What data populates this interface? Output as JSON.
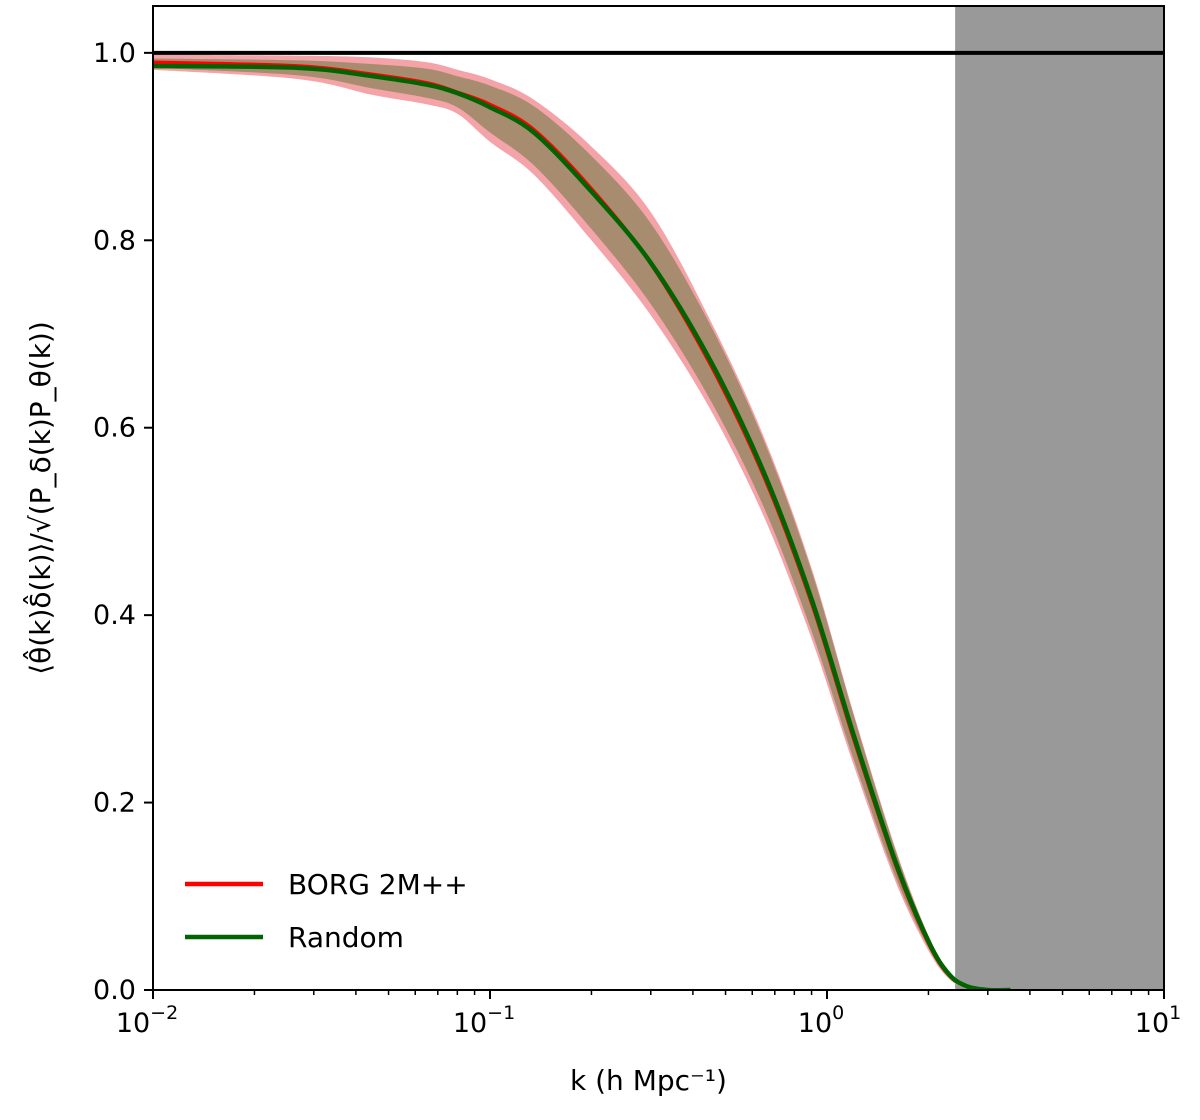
{
  "chart_data": {
    "type": "line",
    "xscale": "log",
    "xlim": [
      0.01,
      10
    ],
    "ylim": [
      0.0,
      1.05
    ],
    "xlabel": "k (h Mpc⁻¹)",
    "ylabel": "⟨θ̂(k)δ̂(k)⟩/√(P_δ(k)P_θ(k))",
    "x_ticks": [
      {
        "value": 0.01,
        "base": "10",
        "exp": "−2"
      },
      {
        "value": 0.1,
        "base": "10",
        "exp": "−1"
      },
      {
        "value": 1,
        "base": "10",
        "exp": "0"
      },
      {
        "value": 10,
        "base": "10",
        "exp": "1"
      }
    ],
    "y_ticks": [
      {
        "value": 0.0,
        "label": "0.0"
      },
      {
        "value": 0.2,
        "label": "0.2"
      },
      {
        "value": 0.4,
        "label": "0.4"
      },
      {
        "value": 0.6,
        "label": "0.6"
      },
      {
        "value": 0.8,
        "label": "0.8"
      },
      {
        "value": 1.0,
        "label": "1.0"
      }
    ],
    "reference_line": {
      "y": 1.0,
      "color": "#000000"
    },
    "shaded_region": {
      "x_min": 2.4,
      "x_max": 10,
      "color": "#999999"
    },
    "legend_position": "lower-left",
    "grid": false,
    "series": [
      {
        "name": "BORG 2M++",
        "color": "#ff0000",
        "band_color": "#f4a3a8",
        "x": [
          0.01,
          0.027,
          0.045,
          0.065,
          0.08,
          0.1,
          0.135,
          0.2,
          0.3,
          0.45,
          0.65,
          0.9,
          1.2,
          1.6,
          2.0,
          2.3,
          2.6,
          3.0,
          3.5
        ],
        "y": [
          0.99,
          0.986,
          0.977,
          0.968,
          0.958,
          0.945,
          0.918,
          0.855,
          0.775,
          0.668,
          0.548,
          0.413,
          0.268,
          0.133,
          0.05,
          0.016,
          0.004,
          0.0,
          0.0
        ],
        "y_low": [
          0.982,
          0.972,
          0.955,
          0.945,
          0.935,
          0.905,
          0.87,
          0.8,
          0.72,
          0.62,
          0.505,
          0.375,
          0.24,
          0.115,
          0.042,
          0.012,
          0.002,
          0.0,
          0.0
        ],
        "y_high": [
          0.998,
          0.997,
          0.995,
          0.99,
          0.982,
          0.972,
          0.95,
          0.9,
          0.83,
          0.715,
          0.59,
          0.45,
          0.295,
          0.15,
          0.058,
          0.02,
          0.006,
          0.0,
          0.0
        ]
      },
      {
        "name": "Random",
        "color": "#006400",
        "band_color": "#a08a6a",
        "x": [
          0.01,
          0.027,
          0.045,
          0.065,
          0.08,
          0.1,
          0.135,
          0.2,
          0.3,
          0.45,
          0.65,
          0.9,
          1.2,
          1.6,
          2.0,
          2.3,
          2.6,
          3.0,
          3.5
        ],
        "y": [
          0.986,
          0.984,
          0.975,
          0.966,
          0.957,
          0.942,
          0.915,
          0.852,
          0.776,
          0.672,
          0.552,
          0.417,
          0.272,
          0.136,
          0.052,
          0.017,
          0.004,
          0.0,
          0.0
        ],
        "y_low": [
          0.984,
          0.976,
          0.962,
          0.952,
          0.942,
          0.915,
          0.88,
          0.812,
          0.732,
          0.63,
          0.515,
          0.383,
          0.246,
          0.12,
          0.045,
          0.013,
          0.003,
          0.0,
          0.0
        ],
        "y_high": [
          0.994,
          0.992,
          0.988,
          0.983,
          0.975,
          0.965,
          0.943,
          0.89,
          0.818,
          0.71,
          0.586,
          0.447,
          0.293,
          0.148,
          0.057,
          0.019,
          0.005,
          0.0,
          0.0
        ]
      }
    ]
  }
}
